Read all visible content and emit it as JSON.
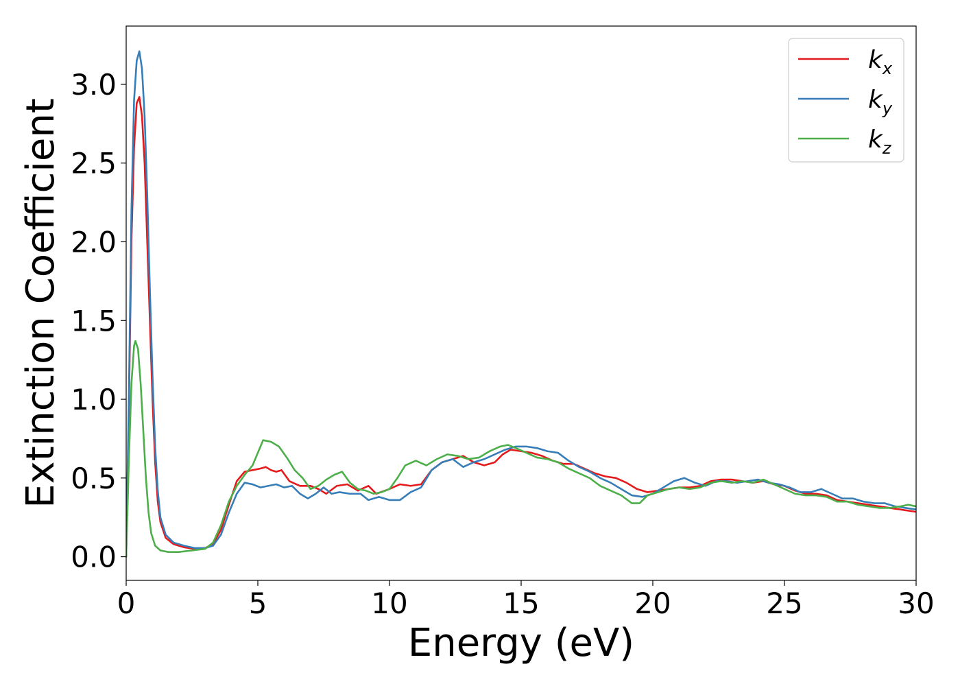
{
  "chart_data": {
    "type": "line",
    "title": "",
    "xlabel": "Energy (eV)",
    "ylabel": "Extinction Coefficient",
    "xlim": [
      0,
      30
    ],
    "ylim": [
      -0.15,
      3.37
    ],
    "xticks": [
      0,
      5,
      10,
      15,
      20,
      25,
      30
    ],
    "xtick_labels": [
      "0",
      "5",
      "10",
      "15",
      "20",
      "25",
      "30"
    ],
    "yticks": [
      0.0,
      0.5,
      1.0,
      1.5,
      2.0,
      2.5,
      3.0
    ],
    "ytick_labels": [
      "0.0",
      "0.5",
      "1.0",
      "1.5",
      "2.0",
      "2.5",
      "3.0"
    ],
    "grid": false,
    "legend_position": "top-right",
    "series": [
      {
        "name": "k",
        "subscript": "x",
        "color": "#e41a1c",
        "points": [
          [
            0,
            0
          ],
          [
            0.1,
            0.9
          ],
          [
            0.2,
            2.0
          ],
          [
            0.3,
            2.6
          ],
          [
            0.4,
            2.88
          ],
          [
            0.5,
            2.92
          ],
          [
            0.6,
            2.8
          ],
          [
            0.7,
            2.5
          ],
          [
            0.8,
            2.0
          ],
          [
            0.9,
            1.5
          ],
          [
            1.0,
            1.0
          ],
          [
            1.1,
            0.6
          ],
          [
            1.2,
            0.35
          ],
          [
            1.3,
            0.22
          ],
          [
            1.5,
            0.12
          ],
          [
            1.8,
            0.08
          ],
          [
            2.2,
            0.06
          ],
          [
            2.6,
            0.05
          ],
          [
            3.0,
            0.055
          ],
          [
            3.3,
            0.08
          ],
          [
            3.6,
            0.17
          ],
          [
            3.9,
            0.33
          ],
          [
            4.2,
            0.48
          ],
          [
            4.5,
            0.54
          ],
          [
            4.8,
            0.55
          ],
          [
            5.1,
            0.56
          ],
          [
            5.3,
            0.57
          ],
          [
            5.5,
            0.55
          ],
          [
            5.7,
            0.54
          ],
          [
            5.9,
            0.55
          ],
          [
            6.2,
            0.48
          ],
          [
            6.6,
            0.45
          ],
          [
            7.0,
            0.45
          ],
          [
            7.3,
            0.43
          ],
          [
            7.6,
            0.4
          ],
          [
            8.0,
            0.45
          ],
          [
            8.4,
            0.46
          ],
          [
            8.8,
            0.42
          ],
          [
            9.2,
            0.45
          ],
          [
            9.5,
            0.4
          ],
          [
            10.0,
            0.43
          ],
          [
            10.4,
            0.46
          ],
          [
            10.8,
            0.45
          ],
          [
            11.2,
            0.46
          ],
          [
            11.6,
            0.55
          ],
          [
            12.0,
            0.6
          ],
          [
            12.4,
            0.62
          ],
          [
            12.8,
            0.64
          ],
          [
            13.2,
            0.6
          ],
          [
            13.6,
            0.58
          ],
          [
            14.0,
            0.6
          ],
          [
            14.3,
            0.65
          ],
          [
            14.6,
            0.68
          ],
          [
            15.0,
            0.67
          ],
          [
            15.4,
            0.66
          ],
          [
            15.8,
            0.64
          ],
          [
            16.2,
            0.61
          ],
          [
            16.6,
            0.59
          ],
          [
            17.0,
            0.59
          ],
          [
            17.4,
            0.56
          ],
          [
            17.8,
            0.53
          ],
          [
            18.2,
            0.51
          ],
          [
            18.6,
            0.5
          ],
          [
            19.0,
            0.47
          ],
          [
            19.4,
            0.43
          ],
          [
            19.8,
            0.41
          ],
          [
            20.2,
            0.42
          ],
          [
            20.6,
            0.43
          ],
          [
            21.0,
            0.44
          ],
          [
            21.4,
            0.44
          ],
          [
            21.8,
            0.45
          ],
          [
            22.2,
            0.48
          ],
          [
            22.6,
            0.49
          ],
          [
            23.0,
            0.49
          ],
          [
            23.4,
            0.48
          ],
          [
            23.8,
            0.47
          ],
          [
            24.2,
            0.48
          ],
          [
            24.6,
            0.46
          ],
          [
            25.0,
            0.45
          ],
          [
            25.4,
            0.42
          ],
          [
            25.8,
            0.4
          ],
          [
            26.2,
            0.4
          ],
          [
            26.6,
            0.39
          ],
          [
            27.0,
            0.36
          ],
          [
            27.4,
            0.35
          ],
          [
            27.8,
            0.34
          ],
          [
            28.2,
            0.33
          ],
          [
            28.6,
            0.32
          ],
          [
            29.0,
            0.31
          ],
          [
            29.4,
            0.3
          ],
          [
            30.0,
            0.285
          ]
        ]
      },
      {
        "name": "k",
        "subscript": "y",
        "color": "#377eb8",
        "points": [
          [
            0,
            0
          ],
          [
            0.1,
            1.0
          ],
          [
            0.2,
            2.2
          ],
          [
            0.3,
            2.9
          ],
          [
            0.4,
            3.15
          ],
          [
            0.5,
            3.21
          ],
          [
            0.6,
            3.1
          ],
          [
            0.7,
            2.8
          ],
          [
            0.8,
            2.3
          ],
          [
            0.9,
            1.7
          ],
          [
            1.0,
            1.15
          ],
          [
            1.1,
            0.7
          ],
          [
            1.2,
            0.42
          ],
          [
            1.3,
            0.25
          ],
          [
            1.5,
            0.14
          ],
          [
            1.8,
            0.09
          ],
          [
            2.2,
            0.07
          ],
          [
            2.6,
            0.055
          ],
          [
            3.0,
            0.055
          ],
          [
            3.3,
            0.07
          ],
          [
            3.6,
            0.14
          ],
          [
            3.9,
            0.28
          ],
          [
            4.2,
            0.4
          ],
          [
            4.5,
            0.47
          ],
          [
            4.8,
            0.46
          ],
          [
            5.1,
            0.44
          ],
          [
            5.4,
            0.45
          ],
          [
            5.7,
            0.46
          ],
          [
            6.0,
            0.44
          ],
          [
            6.3,
            0.45
          ],
          [
            6.6,
            0.4
          ],
          [
            6.9,
            0.37
          ],
          [
            7.2,
            0.4
          ],
          [
            7.5,
            0.44
          ],
          [
            7.8,
            0.4
          ],
          [
            8.1,
            0.41
          ],
          [
            8.5,
            0.4
          ],
          [
            8.9,
            0.4
          ],
          [
            9.2,
            0.36
          ],
          [
            9.6,
            0.38
          ],
          [
            10.0,
            0.36
          ],
          [
            10.4,
            0.36
          ],
          [
            10.8,
            0.41
          ],
          [
            11.2,
            0.44
          ],
          [
            11.6,
            0.55
          ],
          [
            12.0,
            0.6
          ],
          [
            12.4,
            0.62
          ],
          [
            12.8,
            0.57
          ],
          [
            13.2,
            0.6
          ],
          [
            13.6,
            0.62
          ],
          [
            14.0,
            0.65
          ],
          [
            14.4,
            0.68
          ],
          [
            14.8,
            0.7
          ],
          [
            15.2,
            0.7
          ],
          [
            15.6,
            0.69
          ],
          [
            16.0,
            0.67
          ],
          [
            16.4,
            0.66
          ],
          [
            16.8,
            0.61
          ],
          [
            17.2,
            0.57
          ],
          [
            17.6,
            0.54
          ],
          [
            18.0,
            0.5
          ],
          [
            18.4,
            0.47
          ],
          [
            18.8,
            0.43
          ],
          [
            19.2,
            0.39
          ],
          [
            19.6,
            0.38
          ],
          [
            20.0,
            0.4
          ],
          [
            20.4,
            0.44
          ],
          [
            20.8,
            0.48
          ],
          [
            21.2,
            0.5
          ],
          [
            21.6,
            0.47
          ],
          [
            22.0,
            0.45
          ],
          [
            22.4,
            0.48
          ],
          [
            22.8,
            0.48
          ],
          [
            23.2,
            0.47
          ],
          [
            23.6,
            0.48
          ],
          [
            24.0,
            0.49
          ],
          [
            24.4,
            0.47
          ],
          [
            24.8,
            0.46
          ],
          [
            25.2,
            0.44
          ],
          [
            25.6,
            0.41
          ],
          [
            26.0,
            0.41
          ],
          [
            26.4,
            0.43
          ],
          [
            26.8,
            0.4
          ],
          [
            27.2,
            0.37
          ],
          [
            27.6,
            0.37
          ],
          [
            28.0,
            0.35
          ],
          [
            28.4,
            0.34
          ],
          [
            28.8,
            0.34
          ],
          [
            29.2,
            0.32
          ],
          [
            29.6,
            0.31
          ],
          [
            30.0,
            0.3
          ]
        ]
      },
      {
        "name": "k",
        "subscript": "z",
        "color": "#4daf4a",
        "points": [
          [
            0,
            0
          ],
          [
            0.1,
            0.6
          ],
          [
            0.2,
            1.1
          ],
          [
            0.3,
            1.34
          ],
          [
            0.35,
            1.37
          ],
          [
            0.45,
            1.32
          ],
          [
            0.55,
            1.1
          ],
          [
            0.65,
            0.8
          ],
          [
            0.75,
            0.5
          ],
          [
            0.85,
            0.28
          ],
          [
            0.95,
            0.15
          ],
          [
            1.1,
            0.07
          ],
          [
            1.3,
            0.04
          ],
          [
            1.6,
            0.03
          ],
          [
            2.0,
            0.03
          ],
          [
            2.5,
            0.04
          ],
          [
            3.0,
            0.05
          ],
          [
            3.3,
            0.09
          ],
          [
            3.6,
            0.2
          ],
          [
            3.9,
            0.35
          ],
          [
            4.2,
            0.45
          ],
          [
            4.5,
            0.52
          ],
          [
            4.8,
            0.58
          ],
          [
            5.0,
            0.66
          ],
          [
            5.2,
            0.74
          ],
          [
            5.5,
            0.73
          ],
          [
            5.8,
            0.7
          ],
          [
            6.1,
            0.63
          ],
          [
            6.4,
            0.55
          ],
          [
            6.7,
            0.5
          ],
          [
            7.0,
            0.43
          ],
          [
            7.3,
            0.45
          ],
          [
            7.6,
            0.49
          ],
          [
            7.9,
            0.52
          ],
          [
            8.2,
            0.54
          ],
          [
            8.5,
            0.47
          ],
          [
            8.8,
            0.43
          ],
          [
            9.1,
            0.42
          ],
          [
            9.4,
            0.4
          ],
          [
            9.7,
            0.41
          ],
          [
            10.0,
            0.43
          ],
          [
            10.3,
            0.5
          ],
          [
            10.6,
            0.58
          ],
          [
            11.0,
            0.61
          ],
          [
            11.4,
            0.58
          ],
          [
            11.8,
            0.62
          ],
          [
            12.2,
            0.65
          ],
          [
            12.6,
            0.64
          ],
          [
            13.0,
            0.62
          ],
          [
            13.4,
            0.63
          ],
          [
            13.8,
            0.67
          ],
          [
            14.2,
            0.7
          ],
          [
            14.5,
            0.71
          ],
          [
            14.8,
            0.69
          ],
          [
            15.2,
            0.66
          ],
          [
            15.6,
            0.63
          ],
          [
            16.0,
            0.62
          ],
          [
            16.4,
            0.6
          ],
          [
            16.8,
            0.56
          ],
          [
            17.2,
            0.53
          ],
          [
            17.6,
            0.5
          ],
          [
            18.0,
            0.45
          ],
          [
            18.4,
            0.42
          ],
          [
            18.8,
            0.39
          ],
          [
            19.2,
            0.34
          ],
          [
            19.5,
            0.34
          ],
          [
            19.8,
            0.39
          ],
          [
            20.2,
            0.41
          ],
          [
            20.6,
            0.43
          ],
          [
            21.0,
            0.44
          ],
          [
            21.4,
            0.43
          ],
          [
            21.8,
            0.44
          ],
          [
            22.2,
            0.47
          ],
          [
            22.6,
            0.48
          ],
          [
            23.0,
            0.47
          ],
          [
            23.4,
            0.48
          ],
          [
            23.8,
            0.47
          ],
          [
            24.2,
            0.49
          ],
          [
            24.6,
            0.46
          ],
          [
            25.0,
            0.43
          ],
          [
            25.4,
            0.4
          ],
          [
            25.8,
            0.39
          ],
          [
            26.2,
            0.39
          ],
          [
            26.6,
            0.38
          ],
          [
            27.0,
            0.35
          ],
          [
            27.4,
            0.35
          ],
          [
            27.8,
            0.33
          ],
          [
            28.2,
            0.32
          ],
          [
            28.6,
            0.31
          ],
          [
            29.0,
            0.31
          ],
          [
            29.4,
            0.32
          ],
          [
            29.7,
            0.33
          ],
          [
            30.0,
            0.32
          ]
        ]
      }
    ]
  }
}
